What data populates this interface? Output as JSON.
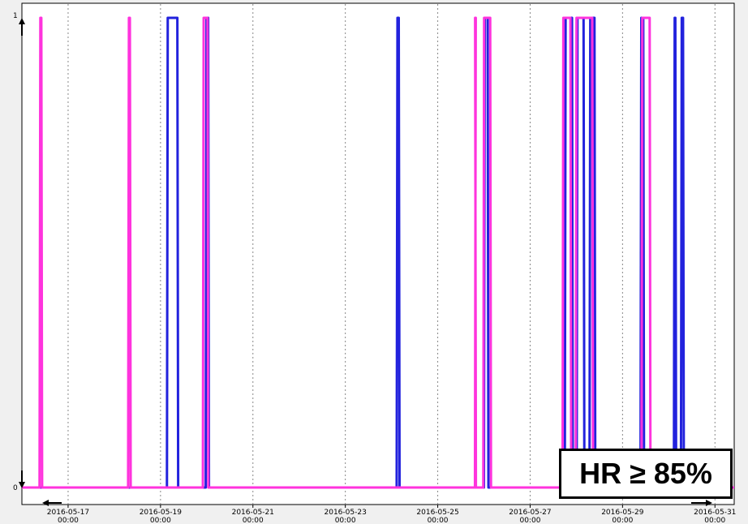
{
  "chart_data": {
    "type": "line",
    "title": "",
    "xlabel": "",
    "ylabel": "",
    "x_range": [
      "2016-05-16 00:00",
      "2016-05-31 10:00"
    ],
    "ylim": [
      0,
      1
    ],
    "y_ticks": [
      {
        "value": 0,
        "label": "0"
      },
      {
        "value": 1,
        "label": "1"
      }
    ],
    "x_ticks": [
      {
        "value": "2016-05-17 00:00",
        "date": "2016-05-17",
        "time": "00:00"
      },
      {
        "value": "2016-05-19 00:00",
        "date": "2016-05-19",
        "time": "00:00"
      },
      {
        "value": "2016-05-21 00:00",
        "date": "2016-05-21",
        "time": "00:00"
      },
      {
        "value": "2016-05-23 00:00",
        "date": "2016-05-23",
        "time": "00:00"
      },
      {
        "value": "2016-05-25 00:00",
        "date": "2016-05-25",
        "time": "00:00"
      },
      {
        "value": "2016-05-27 00:00",
        "date": "2016-05-27",
        "time": "00:00"
      },
      {
        "value": "2016-05-29 00:00",
        "date": "2016-05-29",
        "time": "00:00"
      },
      {
        "value": "2016-05-31 00:00",
        "date": "2016-05-31",
        "time": "00:00"
      }
    ],
    "grid": {
      "vertical": true,
      "horizontal": false,
      "style": "dotted"
    },
    "legend": "none",
    "series": [
      {
        "color": "#2222dd",
        "pulses": [
          [
            "2016-05-19 03:20",
            "2016-05-19 09:10"
          ],
          [
            "2016-05-19 23:30",
            "2016-05-20 01:10"
          ],
          [
            "2016-05-24 02:40",
            "2016-05-24 04:10"
          ],
          [
            "2016-05-26 00:00",
            "2016-05-26 02:20"
          ],
          [
            "2016-05-27 18:00",
            "2016-05-27 22:10"
          ],
          [
            "2016-05-28 00:10",
            "2016-05-28 04:10"
          ],
          [
            "2016-05-28 06:50",
            "2016-05-28 09:50"
          ],
          [
            "2016-05-29 09:20",
            "2016-05-29 11:10"
          ],
          [
            "2016-05-30 02:40",
            "2016-05-30 03:50"
          ],
          [
            "2016-05-30 06:20",
            "2016-05-30 07:50"
          ]
        ]
      },
      {
        "color": "#ff33dd",
        "pulses": [
          [
            "2016-05-16 09:10",
            "2016-05-16 10:30"
          ],
          [
            "2016-05-18 07:10",
            "2016-05-18 08:30"
          ],
          [
            "2016-05-19 22:00",
            "2016-05-20 00:50"
          ],
          [
            "2016-05-25 19:20",
            "2016-05-25 19:50"
          ],
          [
            "2016-05-25 23:40",
            "2016-05-26 03:40"
          ],
          [
            "2016-05-27 16:50",
            "2016-05-27 21:20"
          ],
          [
            "2016-05-27 23:40",
            "2016-05-28 08:40"
          ],
          [
            "2016-05-29 09:50",
            "2016-05-29 14:30"
          ]
        ]
      }
    ],
    "annotation": "HR ≥ 85%"
  }
}
